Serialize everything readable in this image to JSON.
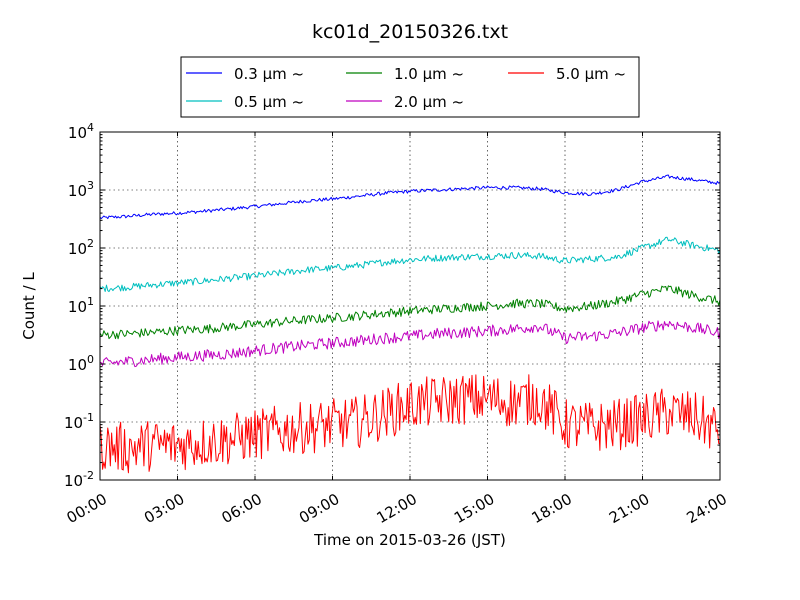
{
  "chart_data": {
    "type": "line",
    "title": "kc01d_20150326.txt",
    "xlabel": "Time on 2015-03-26 (JST)",
    "ylabel": "Count / L",
    "yscale": "log",
    "xlim": [
      "00:00",
      "24:00"
    ],
    "ylim": [
      0.01,
      10000
    ],
    "grid": true,
    "legend_placement": "top-center, above plot",
    "x_ticks": [
      "00:00",
      "03:00",
      "06:00",
      "09:00",
      "12:00",
      "15:00",
      "18:00",
      "21:00",
      "24:00"
    ],
    "y_ticks": [
      {
        "base": "10",
        "exp": "-2",
        "value": 0.01
      },
      {
        "base": "10",
        "exp": "-1",
        "value": 0.1
      },
      {
        "base": "10",
        "exp": "0",
        "value": 1
      },
      {
        "base": "10",
        "exp": "1",
        "value": 10
      },
      {
        "base": "10",
        "exp": "2",
        "value": 100
      },
      {
        "base": "10",
        "exp": "3",
        "value": 1000
      },
      {
        "base": "10",
        "exp": "4",
        "value": 10000
      }
    ],
    "x_hours": [
      0,
      1,
      2,
      3,
      4,
      5,
      6,
      7,
      8,
      9,
      10,
      11,
      12,
      13,
      14,
      15,
      16,
      17,
      18,
      19,
      20,
      21,
      22,
      23,
      24
    ],
    "series": [
      {
        "name": "0.3 μm ~",
        "color": "#0000ff",
        "values": [
          330,
          350,
          380,
          400,
          430,
          470,
          520,
          580,
          650,
          700,
          780,
          880,
          950,
          1000,
          1050,
          1100,
          1100,
          1050,
          900,
          850,
          1000,
          1400,
          1700,
          1500,
          1300
        ]
      },
      {
        "name": "0.5 μm ~",
        "color": "#00bfbf",
        "values": [
          20,
          21,
          23,
          25,
          27,
          30,
          33,
          37,
          42,
          45,
          50,
          57,
          63,
          67,
          70,
          72,
          75,
          73,
          60,
          65,
          70,
          100,
          140,
          110,
          90
        ]
      },
      {
        "name": "1.0 μm ~",
        "color": "#008000",
        "values": [
          3.2,
          3.3,
          3.5,
          3.8,
          4.0,
          4.4,
          4.8,
          5.3,
          5.8,
          6.2,
          6.8,
          7.5,
          8.2,
          8.8,
          9.5,
          10,
          11,
          11,
          9,
          10,
          12,
          16,
          20,
          15,
          12
        ]
      },
      {
        "name": "2.0 μm ~",
        "color": "#bf00bf",
        "values": [
          1.0,
          1.1,
          1.2,
          1.3,
          1.4,
          1.5,
          1.7,
          1.9,
          2.1,
          2.3,
          2.5,
          2.8,
          3.0,
          3.3,
          3.5,
          3.7,
          4.0,
          4.5,
          2.8,
          3.0,
          3.4,
          4.2,
          5.0,
          4.2,
          3.4
        ]
      },
      {
        "name": "5.0 μm ~",
        "color": "#ff0000",
        "values": [
          0.04,
          0.035,
          0.04,
          0.04,
          0.045,
          0.05,
          0.06,
          0.07,
          0.08,
          0.09,
          0.1,
          0.14,
          0.2,
          0.22,
          0.25,
          0.25,
          0.22,
          0.25,
          0.09,
          0.08,
          0.09,
          0.11,
          0.15,
          0.12,
          0.07
        ]
      }
    ]
  }
}
